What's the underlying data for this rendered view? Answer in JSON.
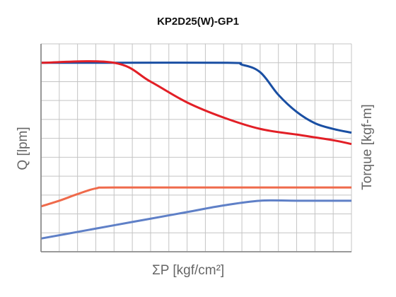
{
  "chart_data": {
    "type": "line",
    "title": "KP2D25(W)-GP1",
    "xlabel": "ΣP [kgf/cm²]",
    "ylabel_left": "Q [lpm]",
    "ylabel_right": "Torque [kgf-m]",
    "xlim": [
      0,
      17
    ],
    "ylim": [
      0,
      11
    ],
    "grid": true,
    "series": [
      {
        "color": "#1a4fa3",
        "points": [
          [
            0,
            10
          ],
          [
            4,
            10
          ],
          [
            10.2,
            10
          ],
          [
            11,
            9.9
          ],
          [
            12,
            9.5
          ],
          [
            13,
            8.3
          ],
          [
            14,
            7.4
          ],
          [
            15,
            6.8
          ],
          [
            16,
            6.5
          ],
          [
            17,
            6.3
          ]
        ]
      },
      {
        "color": "#e21f26",
        "points": [
          [
            0,
            10
          ],
          [
            4,
            10
          ],
          [
            6,
            9.0
          ],
          [
            8,
            7.9
          ],
          [
            10,
            7.1
          ],
          [
            12,
            6.5
          ],
          [
            14,
            6.2
          ],
          [
            16,
            5.9
          ],
          [
            17,
            5.7
          ]
        ]
      },
      {
        "color": "#ef6a4b",
        "points": [
          [
            0,
            2.4
          ],
          [
            1,
            2.7
          ],
          [
            2,
            3.05
          ],
          [
            3,
            3.35
          ],
          [
            4,
            3.4
          ],
          [
            10,
            3.4
          ],
          [
            17,
            3.4
          ]
        ]
      },
      {
        "color": "#5f80c7",
        "points": [
          [
            0,
            0.7
          ],
          [
            2,
            1.05
          ],
          [
            4,
            1.4
          ],
          [
            6,
            1.75
          ],
          [
            8,
            2.1
          ],
          [
            10,
            2.45
          ],
          [
            12,
            2.7
          ],
          [
            14,
            2.7
          ],
          [
            17,
            2.7
          ]
        ]
      }
    ]
  }
}
